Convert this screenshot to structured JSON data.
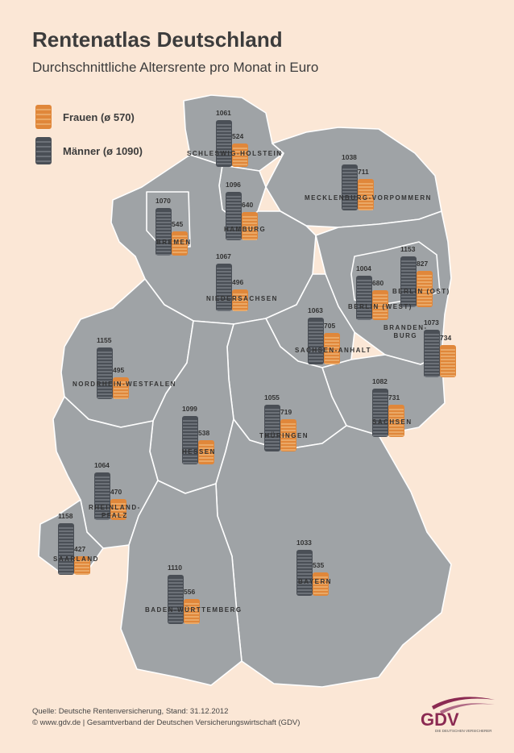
{
  "title": "Rentenatlas Deutschland",
  "subtitle": "Durchschnittliche Altersrente pro Monat in Euro",
  "legend": {
    "women": "Frauen (ø 570)",
    "men": "Männer (ø 1090)"
  },
  "colors": {
    "men": "#4a4f56",
    "women": "#e0873a",
    "map": "#9fa3a6",
    "background": "#fbe7d6",
    "gdv": "#8b2a52"
  },
  "states": [
    {
      "id": "sh",
      "name": "SCHLESWIG-HOLSTEIN",
      "men": 1061,
      "women": 524
    },
    {
      "id": "mv",
      "name": "MECKLENBURG-VORPOMMERN",
      "men": 1038,
      "women": 711
    },
    {
      "id": "hh",
      "name": "HAMBURG",
      "men": 1096,
      "women": 640
    },
    {
      "id": "hb",
      "name": "BREMEN",
      "men": 1070,
      "women": 545
    },
    {
      "id": "ni",
      "name": "NIEDERSACHSEN",
      "men": 1067,
      "women": 496
    },
    {
      "id": "bo",
      "name": "BERLIN (OST)",
      "men": 1153,
      "women": 827
    },
    {
      "id": "bw_",
      "name": "BERLIN (WEST)",
      "men": 1004,
      "women": 680
    },
    {
      "id": "bb",
      "name": "BRANDEN-\nBURG",
      "men": 1073,
      "women": 734
    },
    {
      "id": "st",
      "name": "SACHSEN-ANHALT",
      "men": 1063,
      "women": 705
    },
    {
      "id": "nw",
      "name": "NORDRHEIN-WESTFALEN",
      "men": 1155,
      "women": 495
    },
    {
      "id": "sn",
      "name": "SACHSEN",
      "men": 1082,
      "women": 731
    },
    {
      "id": "th",
      "name": "THÜRINGEN",
      "men": 1055,
      "women": 719
    },
    {
      "id": "he",
      "name": "HESSEN",
      "men": 1099,
      "women": 538
    },
    {
      "id": "rp",
      "name": "RHEINLAND-\nPFALZ",
      "men": 1064,
      "women": 470
    },
    {
      "id": "sl",
      "name": "SAARLAND",
      "men": 1158,
      "women": 427
    },
    {
      "id": "by",
      "name": "BAYERN",
      "men": 1033,
      "women": 535
    },
    {
      "id": "bwb",
      "name": "BADEN-WÜRTTEMBERG",
      "men": 1110,
      "women": 556
    }
  ],
  "source": {
    "line1": "Quelle: Deutsche Rentenversicherung, Stand: 31.12.2012",
    "line2": "© www.gdv.de | Gesamtverband der Deutschen Versicherungswirtschaft (GDV)"
  },
  "logo": {
    "text": "GDV",
    "tagline": "DIE DEUTSCHEN VERSICHERER"
  }
}
